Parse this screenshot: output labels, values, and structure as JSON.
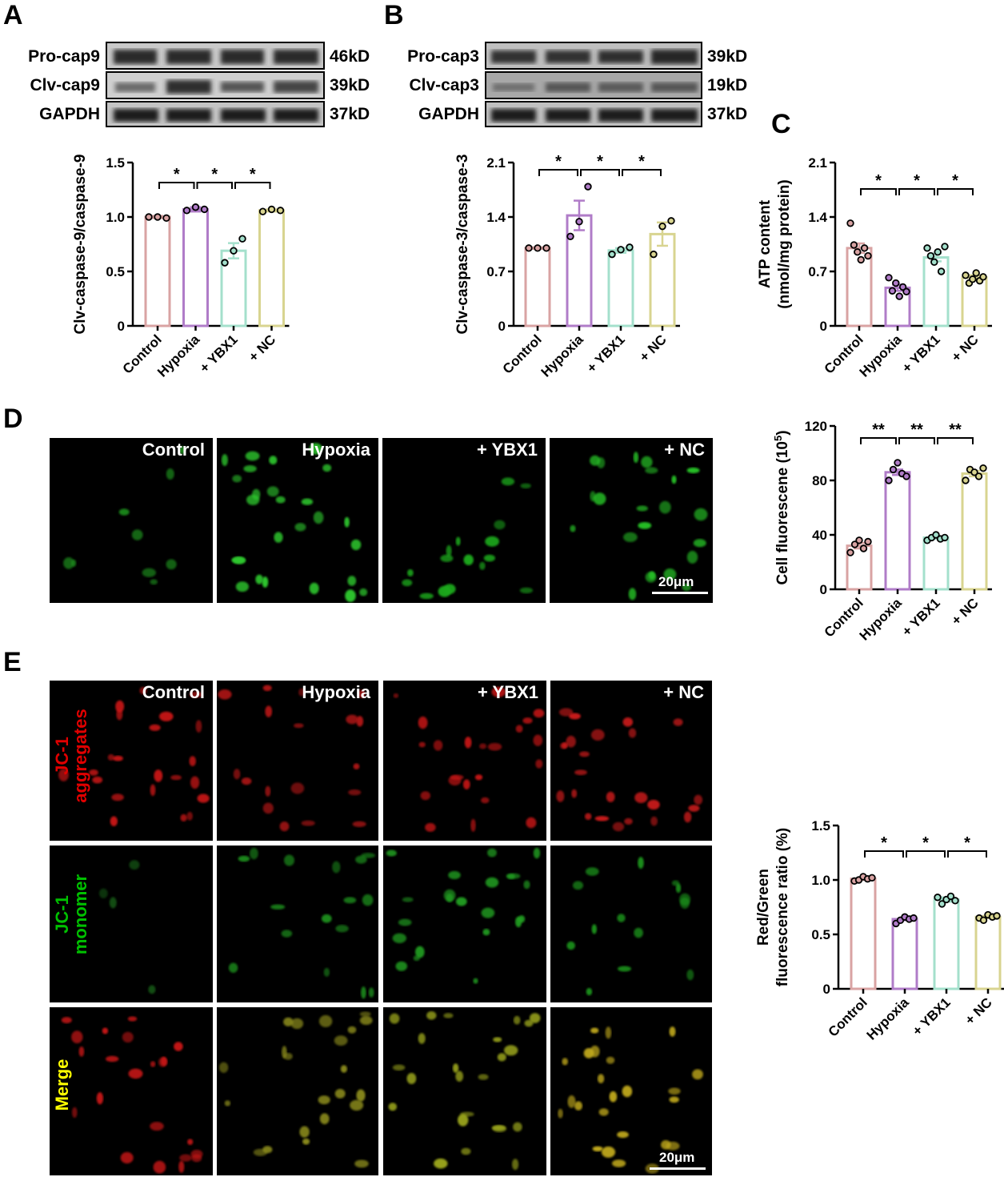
{
  "panels": {
    "A": {
      "label": "A",
      "blots": [
        {
          "name": "Pro-cap9",
          "kd": "46kD"
        },
        {
          "name": "Clv-cap9",
          "kd": "39kD"
        },
        {
          "name": "GAPDH",
          "kd": "37kD"
        }
      ]
    },
    "B": {
      "label": "B",
      "blots": [
        {
          "name": "Pro-cap3",
          "kd": "39kD"
        },
        {
          "name": "Clv-cap3",
          "kd": "19kD"
        },
        {
          "name": "GAPDH",
          "kd": "37kD"
        }
      ]
    },
    "C": {
      "label": "C"
    },
    "D": {
      "label": "D",
      "image_labels": [
        "Control",
        "Hypoxia",
        "+ YBX1",
        "+ NC"
      ],
      "scale_bar": "20μm"
    },
    "E": {
      "label": "E",
      "column_labels": [
        "Control",
        "Hypoxia",
        "+ YBX1",
        "+ NC"
      ],
      "row_labels": [
        {
          "line1": "JC-1",
          "line2": "aggregates",
          "color": "#e00000"
        },
        {
          "line1": "JC-1",
          "line2": "monomer",
          "color": "#00c000"
        },
        {
          "line1": "Merge",
          "line2": "",
          "color": "#ffff00"
        }
      ],
      "scale_bar": "20μm"
    }
  },
  "colors": {
    "Control": "#d9a3a3",
    "Hypoxia": "#b07cc8",
    "+ YBX1": "#a4e0cc",
    "+ NC": "#d8d490"
  },
  "chart_data": [
    {
      "id": "A",
      "type": "bar",
      "categories": [
        "Control",
        "Hypoxia",
        "+ YBX1",
        "+ NC"
      ],
      "values": [
        1.0,
        1.07,
        0.69,
        1.06
      ],
      "sem": [
        0.01,
        0.02,
        0.07,
        0.01
      ],
      "points": [
        [
          1.0,
          1.0,
          0.99
        ],
        [
          1.06,
          1.09,
          1.07
        ],
        [
          0.58,
          0.69,
          0.8
        ],
        [
          1.05,
          1.07,
          1.06
        ]
      ],
      "ylabel": "Clv-caspase-9/caspase-9",
      "ylim": [
        0,
        1.5
      ],
      "yticks": [
        "0",
        "0.5",
        "1.0",
        "1.5"
      ],
      "significance": [
        {
          "from": 0,
          "to": 1,
          "label": "*"
        },
        {
          "from": 1,
          "to": 2,
          "label": "*"
        },
        {
          "from": 2,
          "to": 3,
          "label": "*"
        }
      ]
    },
    {
      "id": "B",
      "type": "bar",
      "categories": [
        "Control",
        "Hypoxia",
        "+ YBX1",
        "+ NC"
      ],
      "values": [
        1.0,
        1.42,
        0.97,
        1.18
      ],
      "sem": [
        0.01,
        0.19,
        0.03,
        0.15
      ],
      "points": [
        [
          1.0,
          1.0,
          1.0
        ],
        [
          1.15,
          1.34,
          1.79
        ],
        [
          0.92,
          0.98,
          1.01
        ],
        [
          0.92,
          1.28,
          1.35
        ]
      ],
      "ylabel": "Clv-caspase-3/caspase-3",
      "ylim": [
        0,
        2.1
      ],
      "yticks": [
        "0",
        "0.7",
        "1.4",
        "2.1"
      ],
      "significance": [
        {
          "from": 0,
          "to": 1,
          "label": "*"
        },
        {
          "from": 1,
          "to": 2,
          "label": "*"
        },
        {
          "from": 2,
          "to": 3,
          "label": "*"
        }
      ]
    },
    {
      "id": "C",
      "type": "bar",
      "categories": [
        "Control",
        "Hypoxia",
        "+ YBX1",
        "+ NC"
      ],
      "values": [
        1.0,
        0.49,
        0.88,
        0.62
      ],
      "sem": [
        0.06,
        0.04,
        0.05,
        0.03
      ],
      "points": [
        [
          1.32,
          1.04,
          0.95,
          0.85,
          1.0,
          0.9
        ],
        [
          0.62,
          0.45,
          0.55,
          0.38,
          0.5,
          0.44
        ],
        [
          1.0,
          0.9,
          0.82,
          0.95,
          0.7,
          1.02
        ],
        [
          0.65,
          0.55,
          0.6,
          0.68,
          0.58,
          0.63
        ]
      ],
      "ylabel": "ATP content",
      "ylabel2": "(nmol/mg protein)",
      "ylim": [
        0,
        2.1
      ],
      "yticks": [
        "0",
        "0.7",
        "1.4",
        "2.1"
      ],
      "significance": [
        {
          "from": 0,
          "to": 1,
          "label": "*"
        },
        {
          "from": 1,
          "to": 2,
          "label": "*"
        },
        {
          "from": 2,
          "to": 3,
          "label": "*"
        }
      ]
    },
    {
      "id": "D",
      "type": "bar",
      "categories": [
        "Control",
        "Hypoxia",
        "+ YBX1",
        "+ NC"
      ],
      "values": [
        32,
        86,
        38,
        85
      ],
      "sem": [
        2,
        2,
        1,
        2
      ],
      "points": [
        [
          27,
          33,
          36,
          30,
          35
        ],
        [
          80,
          88,
          93,
          85,
          83
        ],
        [
          36,
          38,
          40,
          37,
          38
        ],
        [
          80,
          88,
          86,
          83,
          89
        ]
      ],
      "ylabel": "Cell fluorescene (10",
      "ylabel_sup": "5",
      "ylabel_end": ")",
      "ylim": [
        0,
        120
      ],
      "yticks": [
        "0",
        "40",
        "80",
        "120"
      ],
      "significance": [
        {
          "from": 0,
          "to": 1,
          "label": "**"
        },
        {
          "from": 1,
          "to": 2,
          "label": "**"
        },
        {
          "from": 2,
          "to": 3,
          "label": "**"
        }
      ]
    },
    {
      "id": "E",
      "type": "bar",
      "categories": [
        "Control",
        "Hypoxia",
        "+ YBX1",
        "+ NC"
      ],
      "values": [
        1.01,
        0.64,
        0.82,
        0.66
      ],
      "sem": [
        0.01,
        0.01,
        0.02,
        0.01
      ],
      "points": [
        [
          0.99,
          1.0,
          1.03,
          1.01,
          1.02
        ],
        [
          0.6,
          0.63,
          0.66,
          0.64,
          0.65
        ],
        [
          0.84,
          0.78,
          0.82,
          0.85,
          0.81
        ],
        [
          0.65,
          0.63,
          0.68,
          0.66,
          0.67
        ]
      ],
      "ylabel": "Red/Green",
      "ylabel2": "fluorescence ratio (%)",
      "ylim": [
        0,
        1.5
      ],
      "yticks": [
        "0",
        "0.5",
        "1.0",
        "1.5"
      ],
      "significance": [
        {
          "from": 0,
          "to": 1,
          "label": "*"
        },
        {
          "from": 1,
          "to": 2,
          "label": "*"
        },
        {
          "from": 2,
          "to": 3,
          "label": "*"
        }
      ]
    }
  ]
}
